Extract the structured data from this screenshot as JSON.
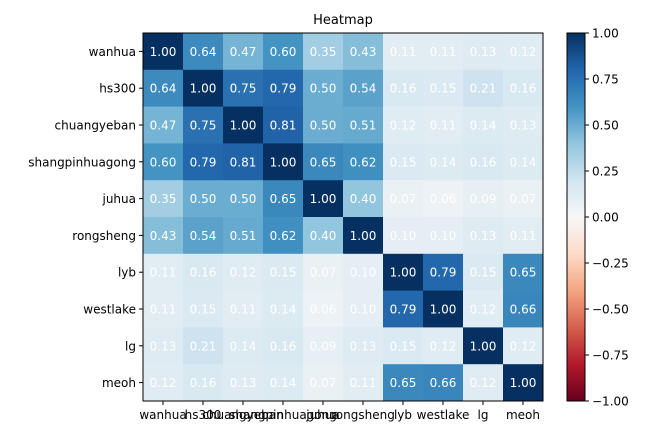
{
  "chart_data": {
    "type": "heatmap",
    "title": "Heatmap",
    "categories": [
      "wanhua",
      "hs300",
      "chuangyeban",
      "shangpinhuagong",
      "juhua",
      "rongsheng",
      "lyb",
      "westlake",
      "lg",
      "meoh"
    ],
    "values": [
      [
        1.0,
        0.64,
        0.47,
        0.6,
        0.35,
        0.43,
        0.11,
        0.11,
        0.13,
        0.12
      ],
      [
        0.64,
        1.0,
        0.75,
        0.79,
        0.5,
        0.54,
        0.16,
        0.15,
        0.21,
        0.16
      ],
      [
        0.47,
        0.75,
        1.0,
        0.81,
        0.5,
        0.51,
        0.12,
        0.11,
        0.14,
        0.13
      ],
      [
        0.6,
        0.79,
        0.81,
        1.0,
        0.65,
        0.62,
        0.15,
        0.14,
        0.16,
        0.14
      ],
      [
        0.35,
        0.5,
        0.5,
        0.65,
        1.0,
        0.4,
        0.07,
        0.06,
        0.09,
        0.07
      ],
      [
        0.43,
        0.54,
        0.51,
        0.62,
        0.4,
        1.0,
        0.1,
        0.1,
        0.13,
        0.11
      ],
      [
        0.11,
        0.16,
        0.12,
        0.15,
        0.07,
        0.1,
        1.0,
        0.79,
        0.15,
        0.65
      ],
      [
        0.11,
        0.15,
        0.11,
        0.14,
        0.06,
        0.1,
        0.79,
        1.0,
        0.12,
        0.66
      ],
      [
        0.13,
        0.21,
        0.14,
        0.16,
        0.09,
        0.13,
        0.15,
        0.12,
        1.0,
        0.12
      ],
      [
        0.12,
        0.16,
        0.13,
        0.14,
        0.07,
        0.11,
        0.65,
        0.66,
        0.12,
        1.0
      ]
    ],
    "colormap": "RdBu",
    "vmin": -1.0,
    "vmax": 1.0,
    "colorbar_ticks": [
      "1.00",
      "0.75",
      "0.50",
      "0.25",
      "0.00",
      "−0.25",
      "−0.50",
      "−0.75",
      "−1.00"
    ],
    "grid": false,
    "value_label_color": "#ffffff"
  }
}
